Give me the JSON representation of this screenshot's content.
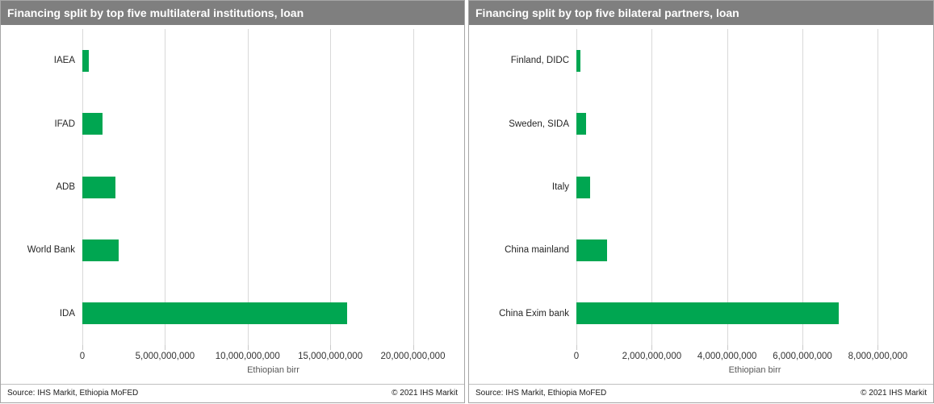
{
  "colors": {
    "bar": "#00a651",
    "title_bar_bg": "#7f7f7f",
    "title_text": "#ffffff",
    "gridline": "#d9d9d9"
  },
  "charts": [
    {
      "id": "multilateral",
      "title": "Financing split by top five multilateral institutions, loan",
      "source": "Source: IHS Markit, Ethiopia MoFED",
      "copyright": "© 2021  IHS Markit",
      "chart_data": {
        "type": "bar",
        "orientation": "horizontal",
        "title": "Financing split by top five multilateral institutions, loan",
        "categories": [
          "IAEA",
          "IFAD",
          "ADB",
          "World Bank",
          "IDA"
        ],
        "values": [
          380000000,
          1240000000,
          2000000000,
          2180000000,
          16000000000
        ],
        "xlabel": "Ethiopian birr",
        "ylabel": "",
        "xlim": [
          0,
          23100000000
        ],
        "grid": true,
        "legend": false,
        "ticks": [
          {
            "value": 0,
            "label": "0"
          },
          {
            "value": 5000000000,
            "label": "5,000,000,000"
          },
          {
            "value": 10000000000,
            "label": "10,000,000,000"
          },
          {
            "value": 15000000000,
            "label": "15,000,000,000"
          },
          {
            "value": 20000000000,
            "label": "20,000,000,000"
          }
        ]
      }
    },
    {
      "id": "bilateral",
      "title": "Financing split by top five bilateral partners, loan",
      "source": "Source: IHS Markit, Ethiopia MoFED",
      "copyright": "© 2021  IHS Markit",
      "chart_data": {
        "type": "bar",
        "orientation": "horizontal",
        "title": "Financing split by top five bilateral partners, loan",
        "categories": [
          "Finland, DIDC",
          "Sweden, SIDA",
          "Italy",
          "China mainland",
          "China Exim bank"
        ],
        "values": [
          110000000,
          260000000,
          370000000,
          810000000,
          6960000000
        ],
        "xlabel": "Ethiopian birr",
        "ylabel": "",
        "xlim": [
          0,
          9470000000
        ],
        "grid": true,
        "legend": false,
        "ticks": [
          {
            "value": 0,
            "label": "0"
          },
          {
            "value": 2000000000,
            "label": "2,000,000,000"
          },
          {
            "value": 4000000000,
            "label": "4,000,000,000"
          },
          {
            "value": 6000000000,
            "label": "6,000,000,000"
          },
          {
            "value": 8000000000,
            "label": "8,000,000,000"
          }
        ]
      }
    }
  ]
}
